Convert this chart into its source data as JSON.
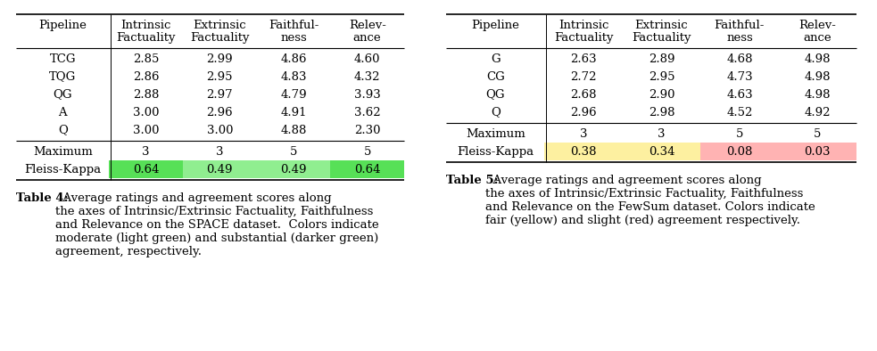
{
  "table1": {
    "col_headers_line1": [
      "Pipeline",
      "Intrinsic",
      "Extrinsic",
      "Faithful-",
      "Relev-"
    ],
    "col_headers_line2": [
      "",
      "Factuality",
      "Factuality",
      "ness",
      "ance"
    ],
    "data_rows": [
      [
        "TCG",
        "2.85",
        "2.99",
        "4.86",
        "4.60"
      ],
      [
        "TQG",
        "2.86",
        "2.95",
        "4.83",
        "4.32"
      ],
      [
        "QG",
        "2.88",
        "2.97",
        "4.79",
        "3.93"
      ],
      [
        "A",
        "3.00",
        "2.96",
        "4.91",
        "3.62"
      ],
      [
        "Q",
        "3.00",
        "3.00",
        "4.88",
        "2.30"
      ]
    ],
    "max_row": [
      "Maximum",
      "3",
      "3",
      "5",
      "5"
    ],
    "fk_row": [
      "Fleiss-Kappa",
      "0.64",
      "0.49",
      "0.49",
      "0.64"
    ],
    "fleiss_colors": [
      "#57e057",
      "#90ee90",
      "#90ee90",
      "#57e057"
    ],
    "caption_bold": "Table 4:",
    "caption_rest": "  Average ratings and agreement scores along\nthe axes of Intrinsic/Extrinsic Factuality, Faithfulness\nand Relevance on the SPACE dataset.  Colors indicate\nmoderate (light green) and substantial (darker green)\nagreement, respectively."
  },
  "table2": {
    "col_headers_line1": [
      "Pipeline",
      "Intrinsic",
      "Extrinsic",
      "Faithful-",
      "Relev-"
    ],
    "col_headers_line2": [
      "",
      "Factuality",
      "Factuality",
      "ness",
      "ance"
    ],
    "data_rows": [
      [
        "G",
        "2.63",
        "2.89",
        "4.68",
        "4.98"
      ],
      [
        "CG",
        "2.72",
        "2.95",
        "4.73",
        "4.98"
      ],
      [
        "QG",
        "2.68",
        "2.90",
        "4.63",
        "4.98"
      ],
      [
        "Q",
        "2.96",
        "2.98",
        "4.52",
        "4.92"
      ]
    ],
    "max_row": [
      "Maximum",
      "3",
      "3",
      "5",
      "5"
    ],
    "fk_row": [
      "Fleiss-Kappa",
      "0.38",
      "0.34",
      "0.08",
      "0.03"
    ],
    "fleiss_colors": [
      "#fdf0a0",
      "#fdf0a0",
      "#ffb3b3",
      "#ffb3b3"
    ],
    "caption_bold": "Table 5:",
    "caption_rest": "  Average ratings and agreement scores along\nthe axes of Intrinsic/Extrinsic Factuality, Faithfulness\nand Relevance on the FewSum dataset. Colors indicate\nfair (yellow) and slight (red) agreement respectively."
  },
  "bg_color": "#ffffff",
  "font_size": 9.5,
  "caption_font_size": 9.5
}
